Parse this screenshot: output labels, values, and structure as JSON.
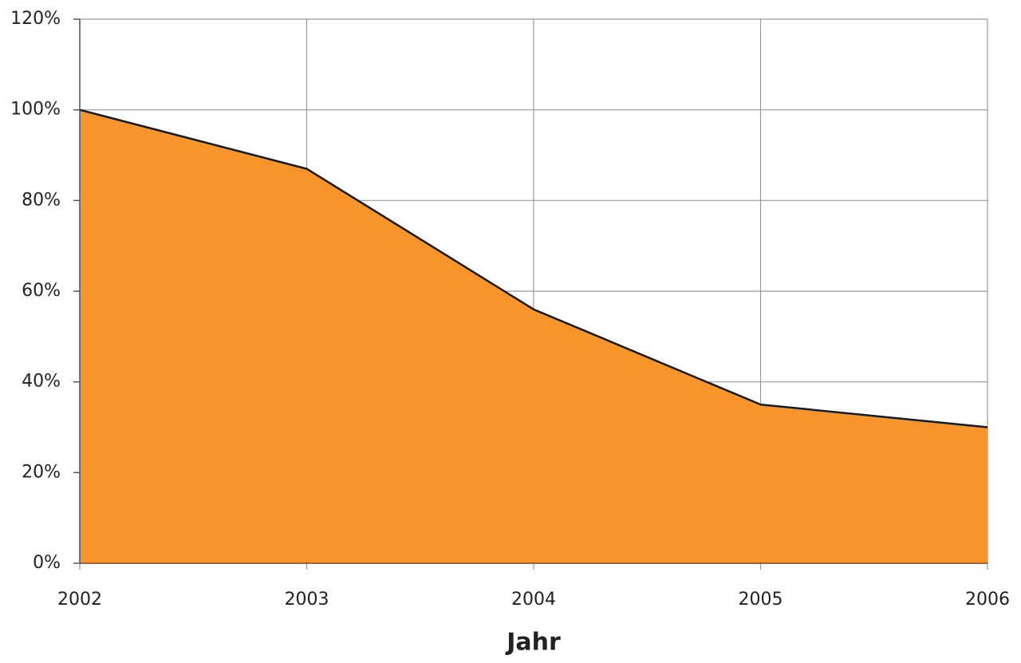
{
  "chart_data": {
    "type": "area",
    "x_label": "Jahr",
    "x": [
      2002,
      2003,
      2004,
      2005,
      2006
    ],
    "values": [
      100,
      87,
      56,
      35,
      30
    ],
    "color": "#f7952a",
    "line_color": "#1a1a1a",
    "xlim": [
      2002,
      2006
    ],
    "xticks": [
      2002,
      2003,
      2004,
      2005,
      2006
    ],
    "ylim": [
      0,
      120
    ],
    "yticks": [
      {
        "value": 0,
        "label": "0%"
      },
      {
        "value": 20,
        "label": "20%"
      },
      {
        "value": 40,
        "label": "40%"
      },
      {
        "value": 60,
        "label": "60%"
      },
      {
        "value": 80,
        "label": "80%"
      },
      {
        "value": 100,
        "label": "100%"
      },
      {
        "value": 120,
        "label": "120%"
      }
    ],
    "grid": true
  }
}
